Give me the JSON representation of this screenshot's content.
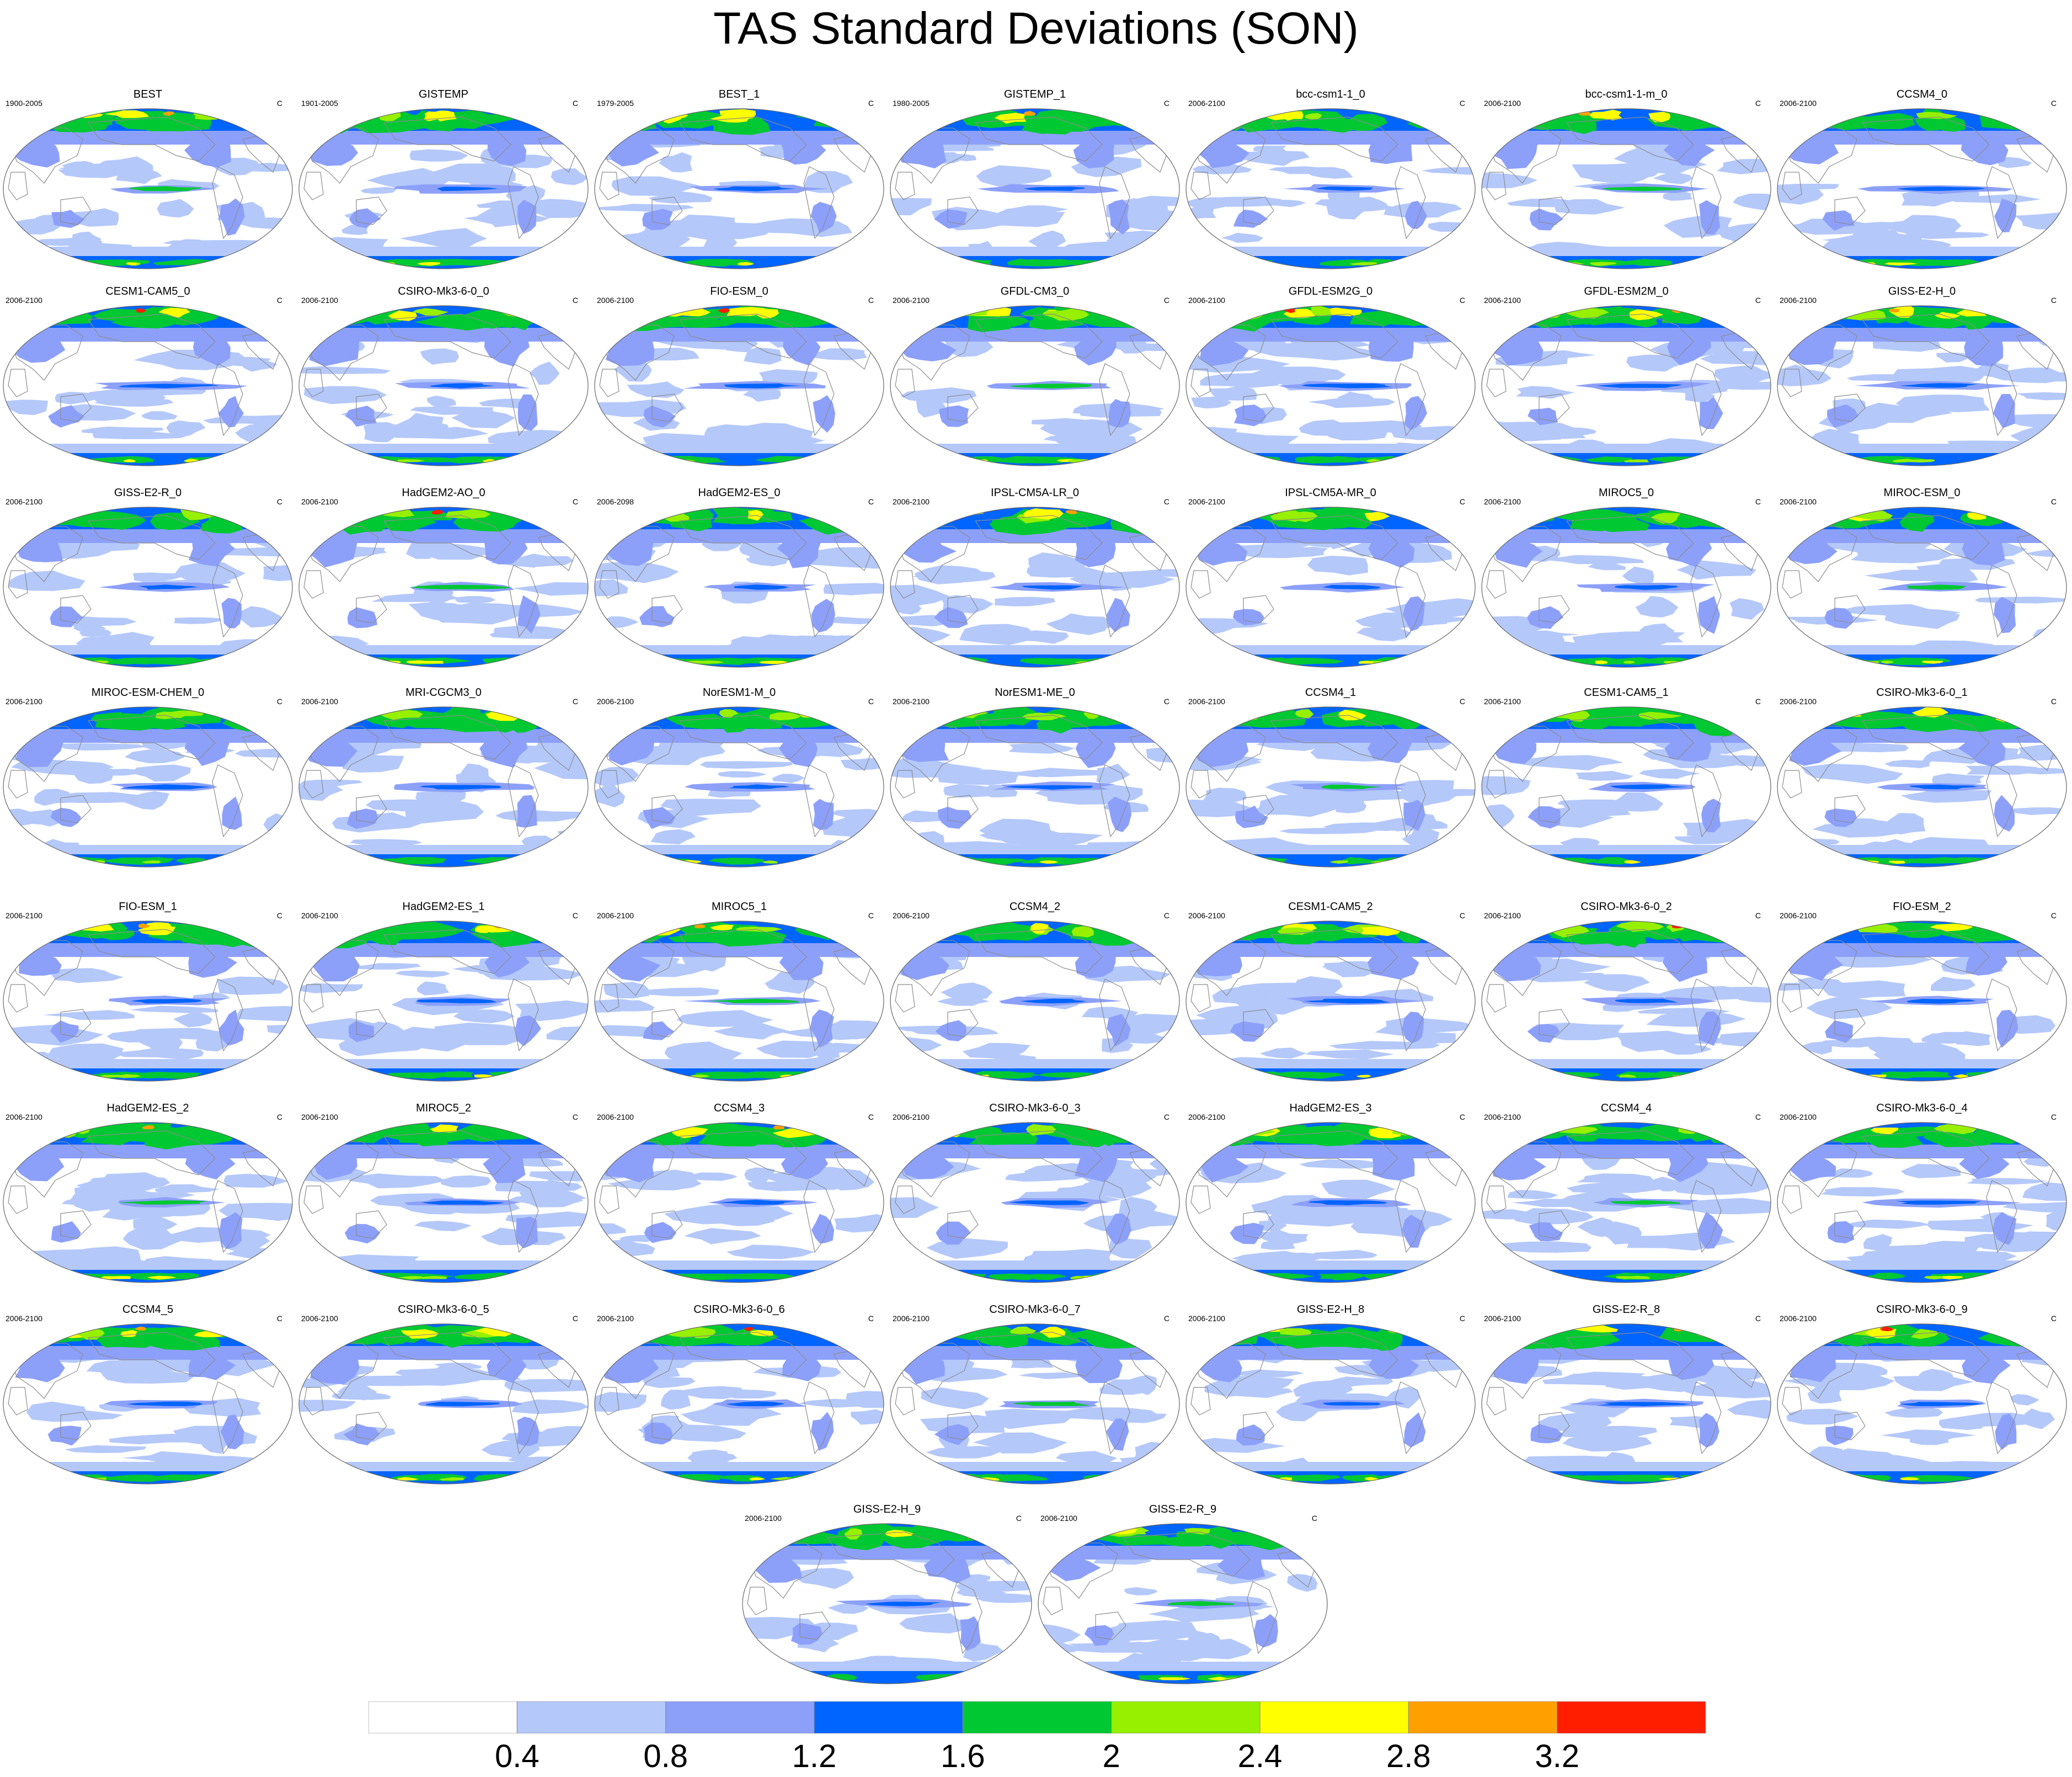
{
  "title": "TAS Standard Deviations (SON)",
  "units": "C",
  "colorbar": {
    "levels": [
      "0.4",
      "0.8",
      "1.2",
      "1.6",
      "2",
      "2.4",
      "2.8",
      "3.2"
    ],
    "colors": [
      "#ffffff",
      "#b4c8fa",
      "#8ca0fa",
      "#0064ff",
      "#00c832",
      "#96f000",
      "#ffff00",
      "#ffa000",
      "#ff1e00"
    ]
  },
  "land_outline_color": "#8c8c8c",
  "panels": [
    {
      "name": "BEST",
      "years": "1900-2005"
    },
    {
      "name": "GISTEMP",
      "years": "1901-2005"
    },
    {
      "name": "BEST_1",
      "years": "1979-2005"
    },
    {
      "name": "GISTEMP_1",
      "years": "1980-2005"
    },
    {
      "name": "bcc-csm1-1_0",
      "years": "2006-2100"
    },
    {
      "name": "bcc-csm1-1-m_0",
      "years": "2006-2100"
    },
    {
      "name": "CCSM4_0",
      "years": "2006-2100"
    },
    {
      "name": "CESM1-CAM5_0",
      "years": "2006-2100"
    },
    {
      "name": "CSIRO-Mk3-6-0_0",
      "years": "2006-2100"
    },
    {
      "name": "FIO-ESM_0",
      "years": "2006-2100"
    },
    {
      "name": "GFDL-CM3_0",
      "years": "2006-2100"
    },
    {
      "name": "GFDL-ESM2G_0",
      "years": "2006-2100"
    },
    {
      "name": "GFDL-ESM2M_0",
      "years": "2006-2100"
    },
    {
      "name": "GISS-E2-H_0",
      "years": "2006-2100"
    },
    {
      "name": "GISS-E2-R_0",
      "years": "2006-2100"
    },
    {
      "name": "HadGEM2-AO_0",
      "years": "2006-2100"
    },
    {
      "name": "HadGEM2-ES_0",
      "years": "2006-2098"
    },
    {
      "name": "IPSL-CM5A-LR_0",
      "years": "2006-2100"
    },
    {
      "name": "IPSL-CM5A-MR_0",
      "years": "2006-2100"
    },
    {
      "name": "MIROC5_0",
      "years": "2006-2100"
    },
    {
      "name": "MIROC-ESM_0",
      "years": "2006-2100"
    },
    {
      "name": "MIROC-ESM-CHEM_0",
      "years": "2006-2100"
    },
    {
      "name": "MRI-CGCM3_0",
      "years": "2006-2100"
    },
    {
      "name": "NorESM1-M_0",
      "years": "2006-2100"
    },
    {
      "name": "NorESM1-ME_0",
      "years": "2006-2100"
    },
    {
      "name": "CCSM4_1",
      "years": "2006-2100"
    },
    {
      "name": "CESM1-CAM5_1",
      "years": "2006-2100"
    },
    {
      "name": "CSIRO-Mk3-6-0_1",
      "years": "2006-2100"
    },
    {
      "name": "FIO-ESM_1",
      "years": "2006-2100"
    },
    {
      "name": "HadGEM2-ES_1",
      "years": "2006-2100"
    },
    {
      "name": "MIROC5_1",
      "years": "2006-2100"
    },
    {
      "name": "CCSM4_2",
      "years": "2006-2100"
    },
    {
      "name": "CESM1-CAM5_2",
      "years": "2006-2100"
    },
    {
      "name": "CSIRO-Mk3-6-0_2",
      "years": "2006-2100"
    },
    {
      "name": "FIO-ESM_2",
      "years": "2006-2100"
    },
    {
      "name": "HadGEM2-ES_2",
      "years": "2006-2100"
    },
    {
      "name": "MIROC5_2",
      "years": "2006-2100"
    },
    {
      "name": "CCSM4_3",
      "years": "2006-2100"
    },
    {
      "name": "CSIRO-Mk3-6-0_3",
      "years": "2006-2100"
    },
    {
      "name": "HadGEM2-ES_3",
      "years": "2006-2100"
    },
    {
      "name": "CCSM4_4",
      "years": "2006-2100"
    },
    {
      "name": "CSIRO-Mk3-6-0_4",
      "years": "2006-2100"
    },
    {
      "name": "CCSM4_5",
      "years": "2006-2100"
    },
    {
      "name": "CSIRO-Mk3-6-0_5",
      "years": "2006-2100"
    },
    {
      "name": "CSIRO-Mk3-6-0_6",
      "years": "2006-2100"
    },
    {
      "name": "CSIRO-Mk3-6-0_7",
      "years": "2006-2100"
    },
    {
      "name": "GISS-E2-H_8",
      "years": "2006-2100"
    },
    {
      "name": "GISS-E2-R_8",
      "years": "2006-2100"
    },
    {
      "name": "CSIRO-Mk3-6-0_9",
      "years": "2006-2100"
    },
    {
      "name": "GISS-E2-H_9",
      "years": "2006-2100"
    },
    {
      "name": "GISS-E2-R_9",
      "years": "2006-2100"
    }
  ]
}
